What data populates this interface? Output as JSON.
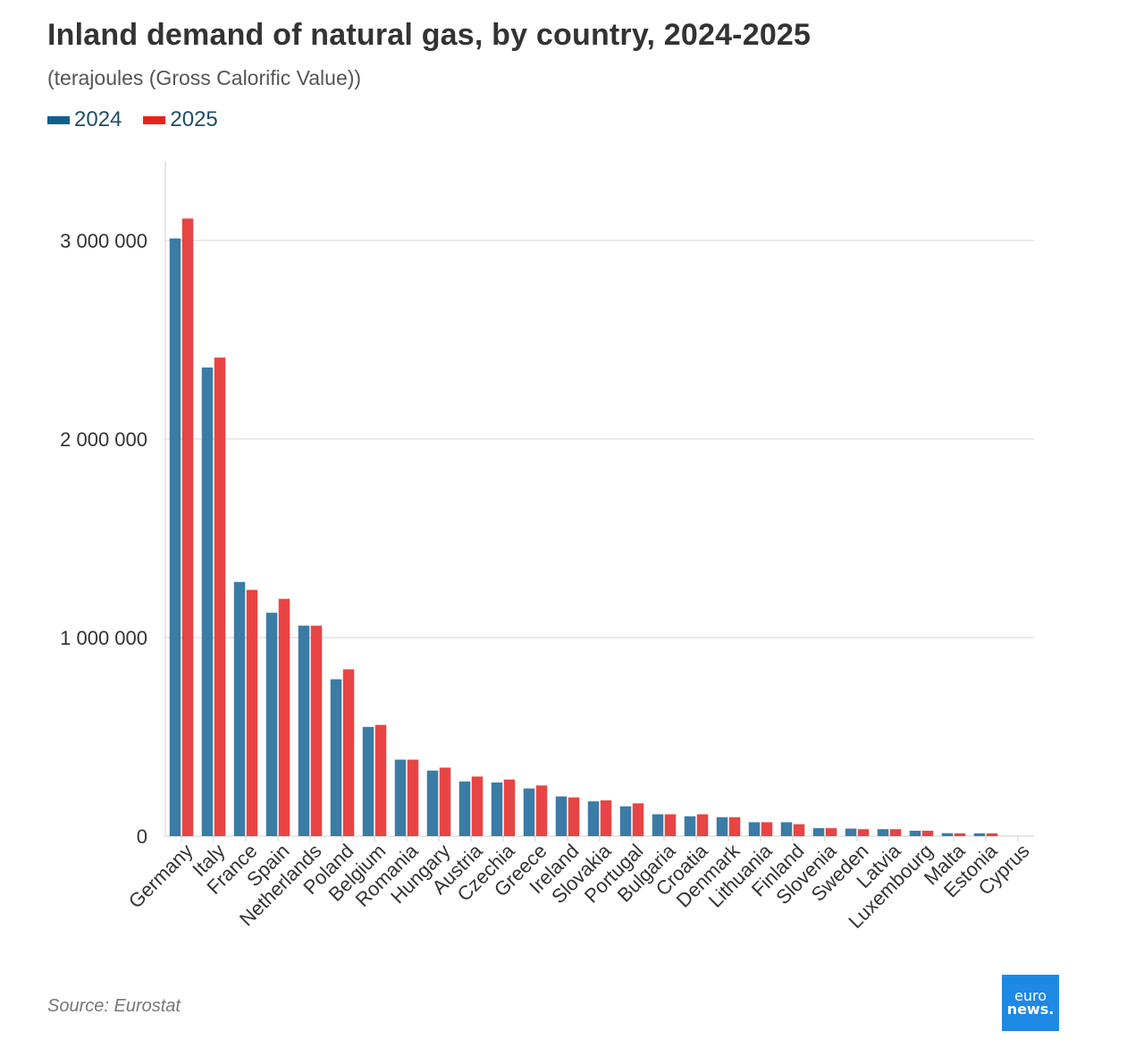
{
  "chart_data": {
    "type": "bar",
    "title": "Inland demand of natural gas, by country, 2024-2025",
    "subtitle": "(terajoules (Gross Calorific Value))",
    "ylim": [
      0,
      3400000
    ],
    "yticks": [
      0,
      1000000,
      2000000,
      3000000
    ],
    "ytick_labels": [
      "0",
      "1 000 000",
      "2 000 000",
      "3 000 000"
    ],
    "grid": true,
    "legend_position": "top-left",
    "categories": [
      "Germany",
      "Italy",
      "France",
      "Spain",
      "Netherlands",
      "Poland",
      "Belgium",
      "Romania",
      "Hungary",
      "Austria",
      "Czechia",
      "Greece",
      "Ireland",
      "Slovakia",
      "Portugal",
      "Bulgaria",
      "Croatia",
      "Denmark",
      "Lithuania",
      "Finland",
      "Slovenia",
      "Sweden",
      "Latvia",
      "Luxembourg",
      "Malta",
      "Estonia",
      "Cyprus"
    ],
    "series": [
      {
        "name": "2024",
        "color": "#3a7ca5",
        "values": [
          3010000,
          2360000,
          1280000,
          1125000,
          1060000,
          790000,
          550000,
          385000,
          330000,
          275000,
          270000,
          240000,
          200000,
          175000,
          150000,
          110000,
          100000,
          95000,
          70000,
          70000,
          40000,
          38000,
          35000,
          27000,
          15000,
          14000,
          0
        ]
      },
      {
        "name": "2025",
        "color": "#e84444",
        "values": [
          3110000,
          2410000,
          1240000,
          1195000,
          1060000,
          840000,
          560000,
          385000,
          345000,
          300000,
          285000,
          255000,
          195000,
          180000,
          165000,
          110000,
          110000,
          95000,
          70000,
          60000,
          40000,
          35000,
          35000,
          27000,
          14000,
          14000,
          0
        ]
      }
    ]
  },
  "legend": {
    "items": [
      {
        "label": "2024",
        "color": "#0f5f8e"
      },
      {
        "label": "2025",
        "color": "#e8231c"
      }
    ]
  },
  "footer": {
    "source": "Source: Eurostat",
    "logo_line1": "euro",
    "logo_line2": "news."
  }
}
